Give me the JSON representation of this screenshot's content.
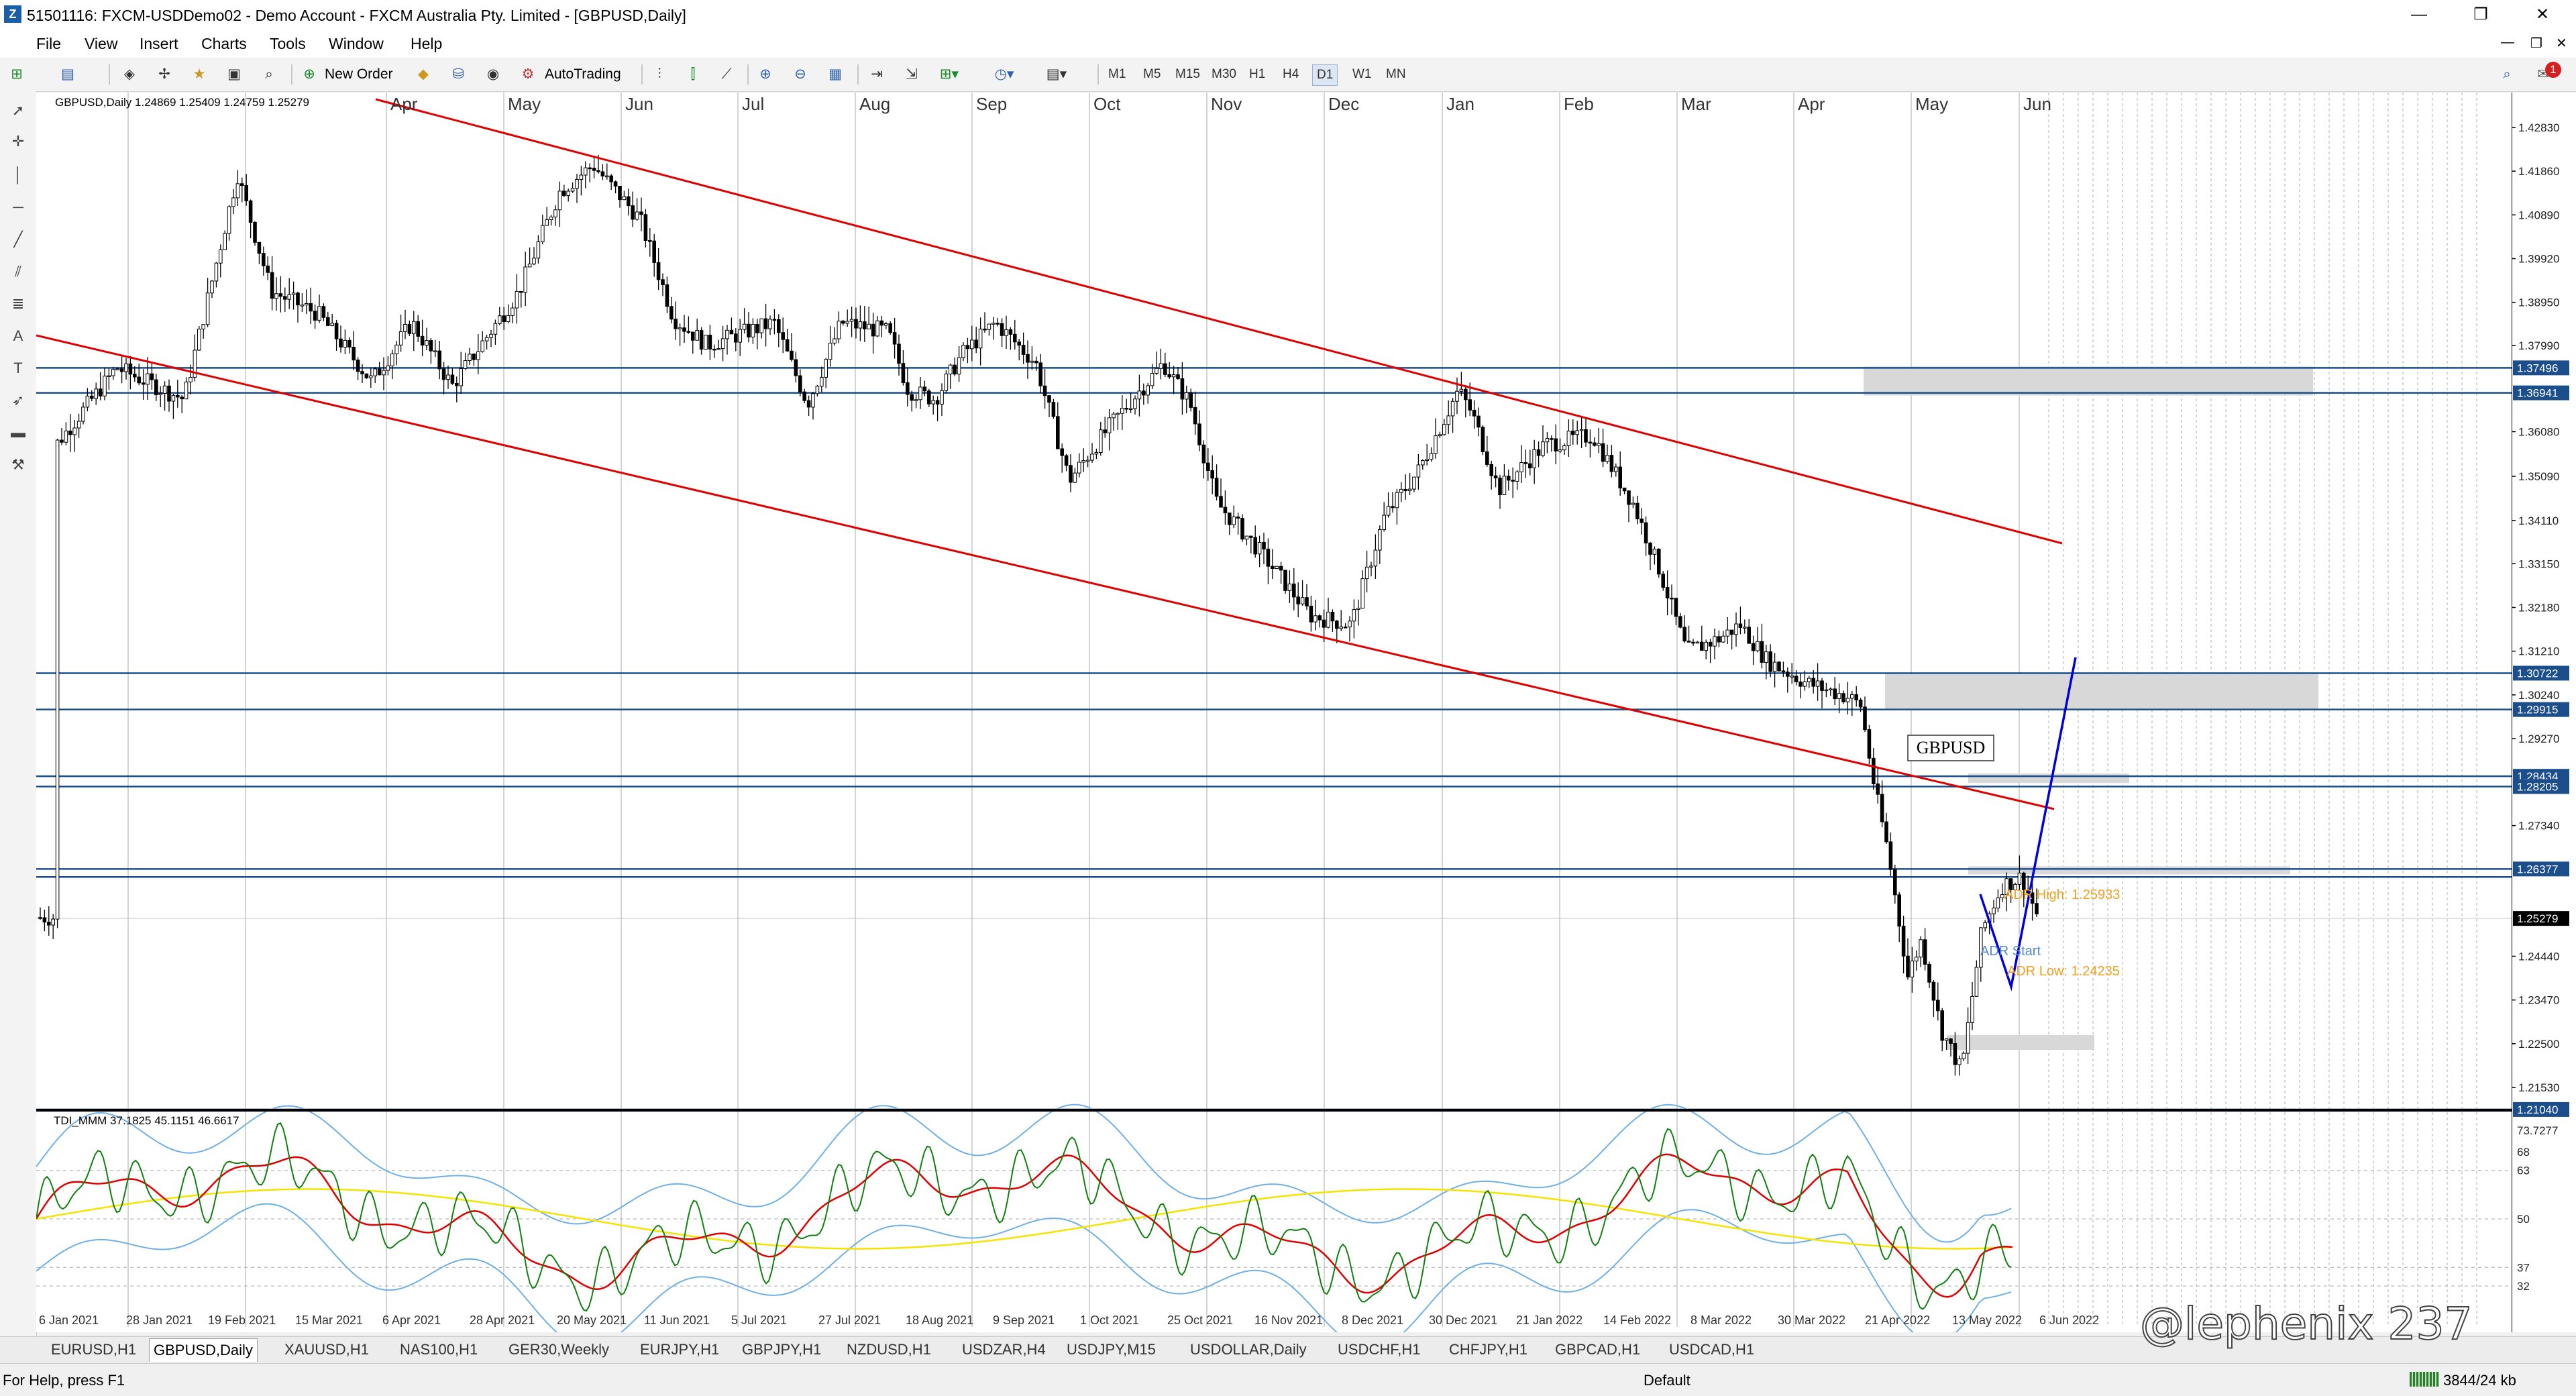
{
  "window": {
    "title": "51501116: FXCM-USDDemo02 - Demo Account - FXCM Australia Pty. Limited - [GBPUSD,Daily]",
    "minimize": "—",
    "restore": "❐",
    "close": "✕"
  },
  "menu": [
    "File",
    "View",
    "Insert",
    "Charts",
    "Tools",
    "Window",
    "Help"
  ],
  "toolbar": {
    "new_order": "New Order",
    "autotrading": "AutoTrading",
    "timeframes": [
      "M1",
      "M5",
      "M15",
      "M30",
      "H1",
      "H4",
      "D1",
      "W1",
      "MN"
    ],
    "active_timeframe": "D1",
    "notifications": "1"
  },
  "chart": {
    "symbol_info": "GBPUSD,Daily  1.24869 1.25409 1.24759 1.25279",
    "label": "GBPUSD",
    "months": [
      "Apr",
      "May",
      "Jun",
      "Jul",
      "Aug",
      "Sep",
      "Oct",
      "Nov",
      "Dec",
      "Jan",
      "Feb",
      "Mar",
      "Apr",
      "May",
      "Jun"
    ],
    "price_ticks": [
      "1.42830",
      "1.41860",
      "1.40890",
      "1.39920",
      "1.38950",
      "1.37990",
      "1.36080",
      "1.35090",
      "1.34110",
      "1.33150",
      "1.32180",
      "1.31210",
      "1.30240",
      "1.29270",
      "1.27340",
      "1.24440",
      "1.23470",
      "1.22500",
      "1.21530"
    ],
    "level_labels": [
      "1.37496",
      "1.36941",
      "1.30722",
      "1.29915",
      "1.28434",
      "1.28205",
      "1.26377",
      "1.25279",
      "1.21040"
    ],
    "current_price": "1.25279",
    "adr_high": "ADR High: 1.25933",
    "adr_low": "ADR Low: 1.24235",
    "adr_start": "ADR Start",
    "dates": [
      "6 Jan 2021",
      "28 Jan 2021",
      "19 Feb 2021",
      "15 Mar 2021",
      "6 Apr 2021",
      "28 Apr 2021",
      "20 May 2021",
      "11 Jun 2021",
      "5 Jul 2021",
      "27 Jul 2021",
      "18 Aug 2021",
      "9 Sep 2021",
      "1 Oct 2021",
      "25 Oct 2021",
      "16 Nov 2021",
      "8 Dec 2021",
      "30 Dec 2021",
      "21 Jan 2022",
      "14 Feb 2022",
      "8 Mar 2022",
      "30 Mar 2022",
      "21 Apr 2022",
      "13 May 2022",
      "6 Jun 2022"
    ]
  },
  "indicator": {
    "label": "TDI_MMM 37.1825 45.1151 46.6617",
    "ticks": [
      "73.7277",
      "68",
      "63",
      "50",
      "37",
      "32"
    ]
  },
  "tabs": [
    "EURUSD,H1",
    "GBPUSD,Daily",
    "XAUUSD,H1",
    "NAS100,H1",
    "GER30,Weekly",
    "EURJPY,H1",
    "GBPJPY,H1",
    "NZDUSD,H1",
    "USDZAR,H4",
    "USDJPY,M15",
    "USDOLLAR,Daily",
    "USDCHF,H1",
    "CHFJPY,H1",
    "GBPCAD,H1",
    "USDCAD,H1"
  ],
  "active_tab": "GBPUSD,Daily",
  "status": {
    "help": "For Help, press F1",
    "profile": "Default",
    "traffic": "3844/24 kb"
  },
  "watermark": "@lephenix 237",
  "colors": {
    "channel": "#e00000",
    "level": "#1c4e8c",
    "projection": "#0000dd",
    "adr": "#f0a020",
    "zone": "#d8d8d8",
    "tdi_green": "#108010",
    "tdi_red": "#e00000",
    "tdi_yellow": "#f4e400",
    "tdi_band": "#6fb0e8"
  }
}
